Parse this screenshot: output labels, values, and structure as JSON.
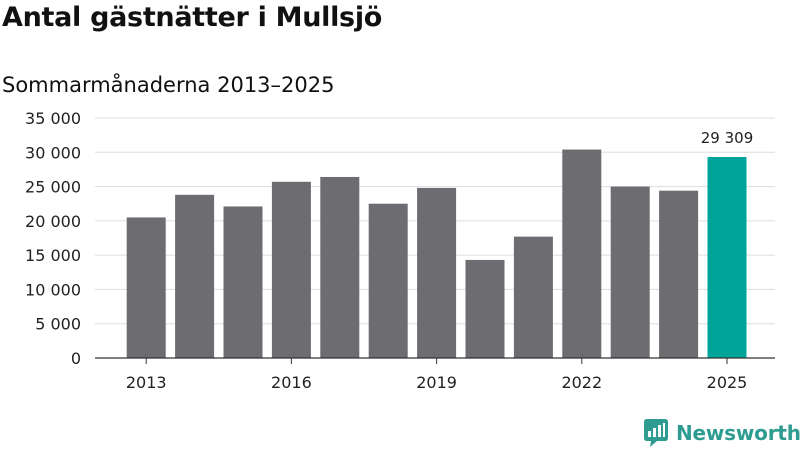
{
  "title": "Antal gästnätter i Mullsjö",
  "subtitle": "Sommarmånaderna 2013–2025",
  "brand": {
    "name": "Newsworthy",
    "logo_icon": "newsworthy-logo-icon"
  },
  "colors": {
    "bar": "#6d6c71",
    "highlight": "#00a59a",
    "grid": "#dddddd",
    "axis": "#333333",
    "brand": "#2e9c91"
  },
  "chart_data": {
    "type": "bar",
    "categories": [
      "2013",
      "2014",
      "2015",
      "2016",
      "2017",
      "2018",
      "2019",
      "2020",
      "2021",
      "2022",
      "2023",
      "2024",
      "2025"
    ],
    "values": [
      20500,
      23800,
      22100,
      25700,
      26400,
      22500,
      24800,
      14300,
      17700,
      30400,
      25000,
      24400,
      29309
    ],
    "ylim": [
      0,
      35000
    ],
    "yticks": [
      0,
      5000,
      10000,
      15000,
      20000,
      25000,
      30000,
      35000
    ],
    "ytick_labels": [
      "0",
      "5 000",
      "10 000",
      "15 000",
      "20 000",
      "25 000",
      "30 000",
      "35 000"
    ],
    "xtick_labels": [
      "2013",
      "2016",
      "2019",
      "2022",
      "2025"
    ],
    "highlight_index": 12,
    "data_labels": [
      {
        "index": 12,
        "text": "29 309"
      }
    ],
    "grid": true,
    "xlabel": "",
    "ylabel": ""
  }
}
